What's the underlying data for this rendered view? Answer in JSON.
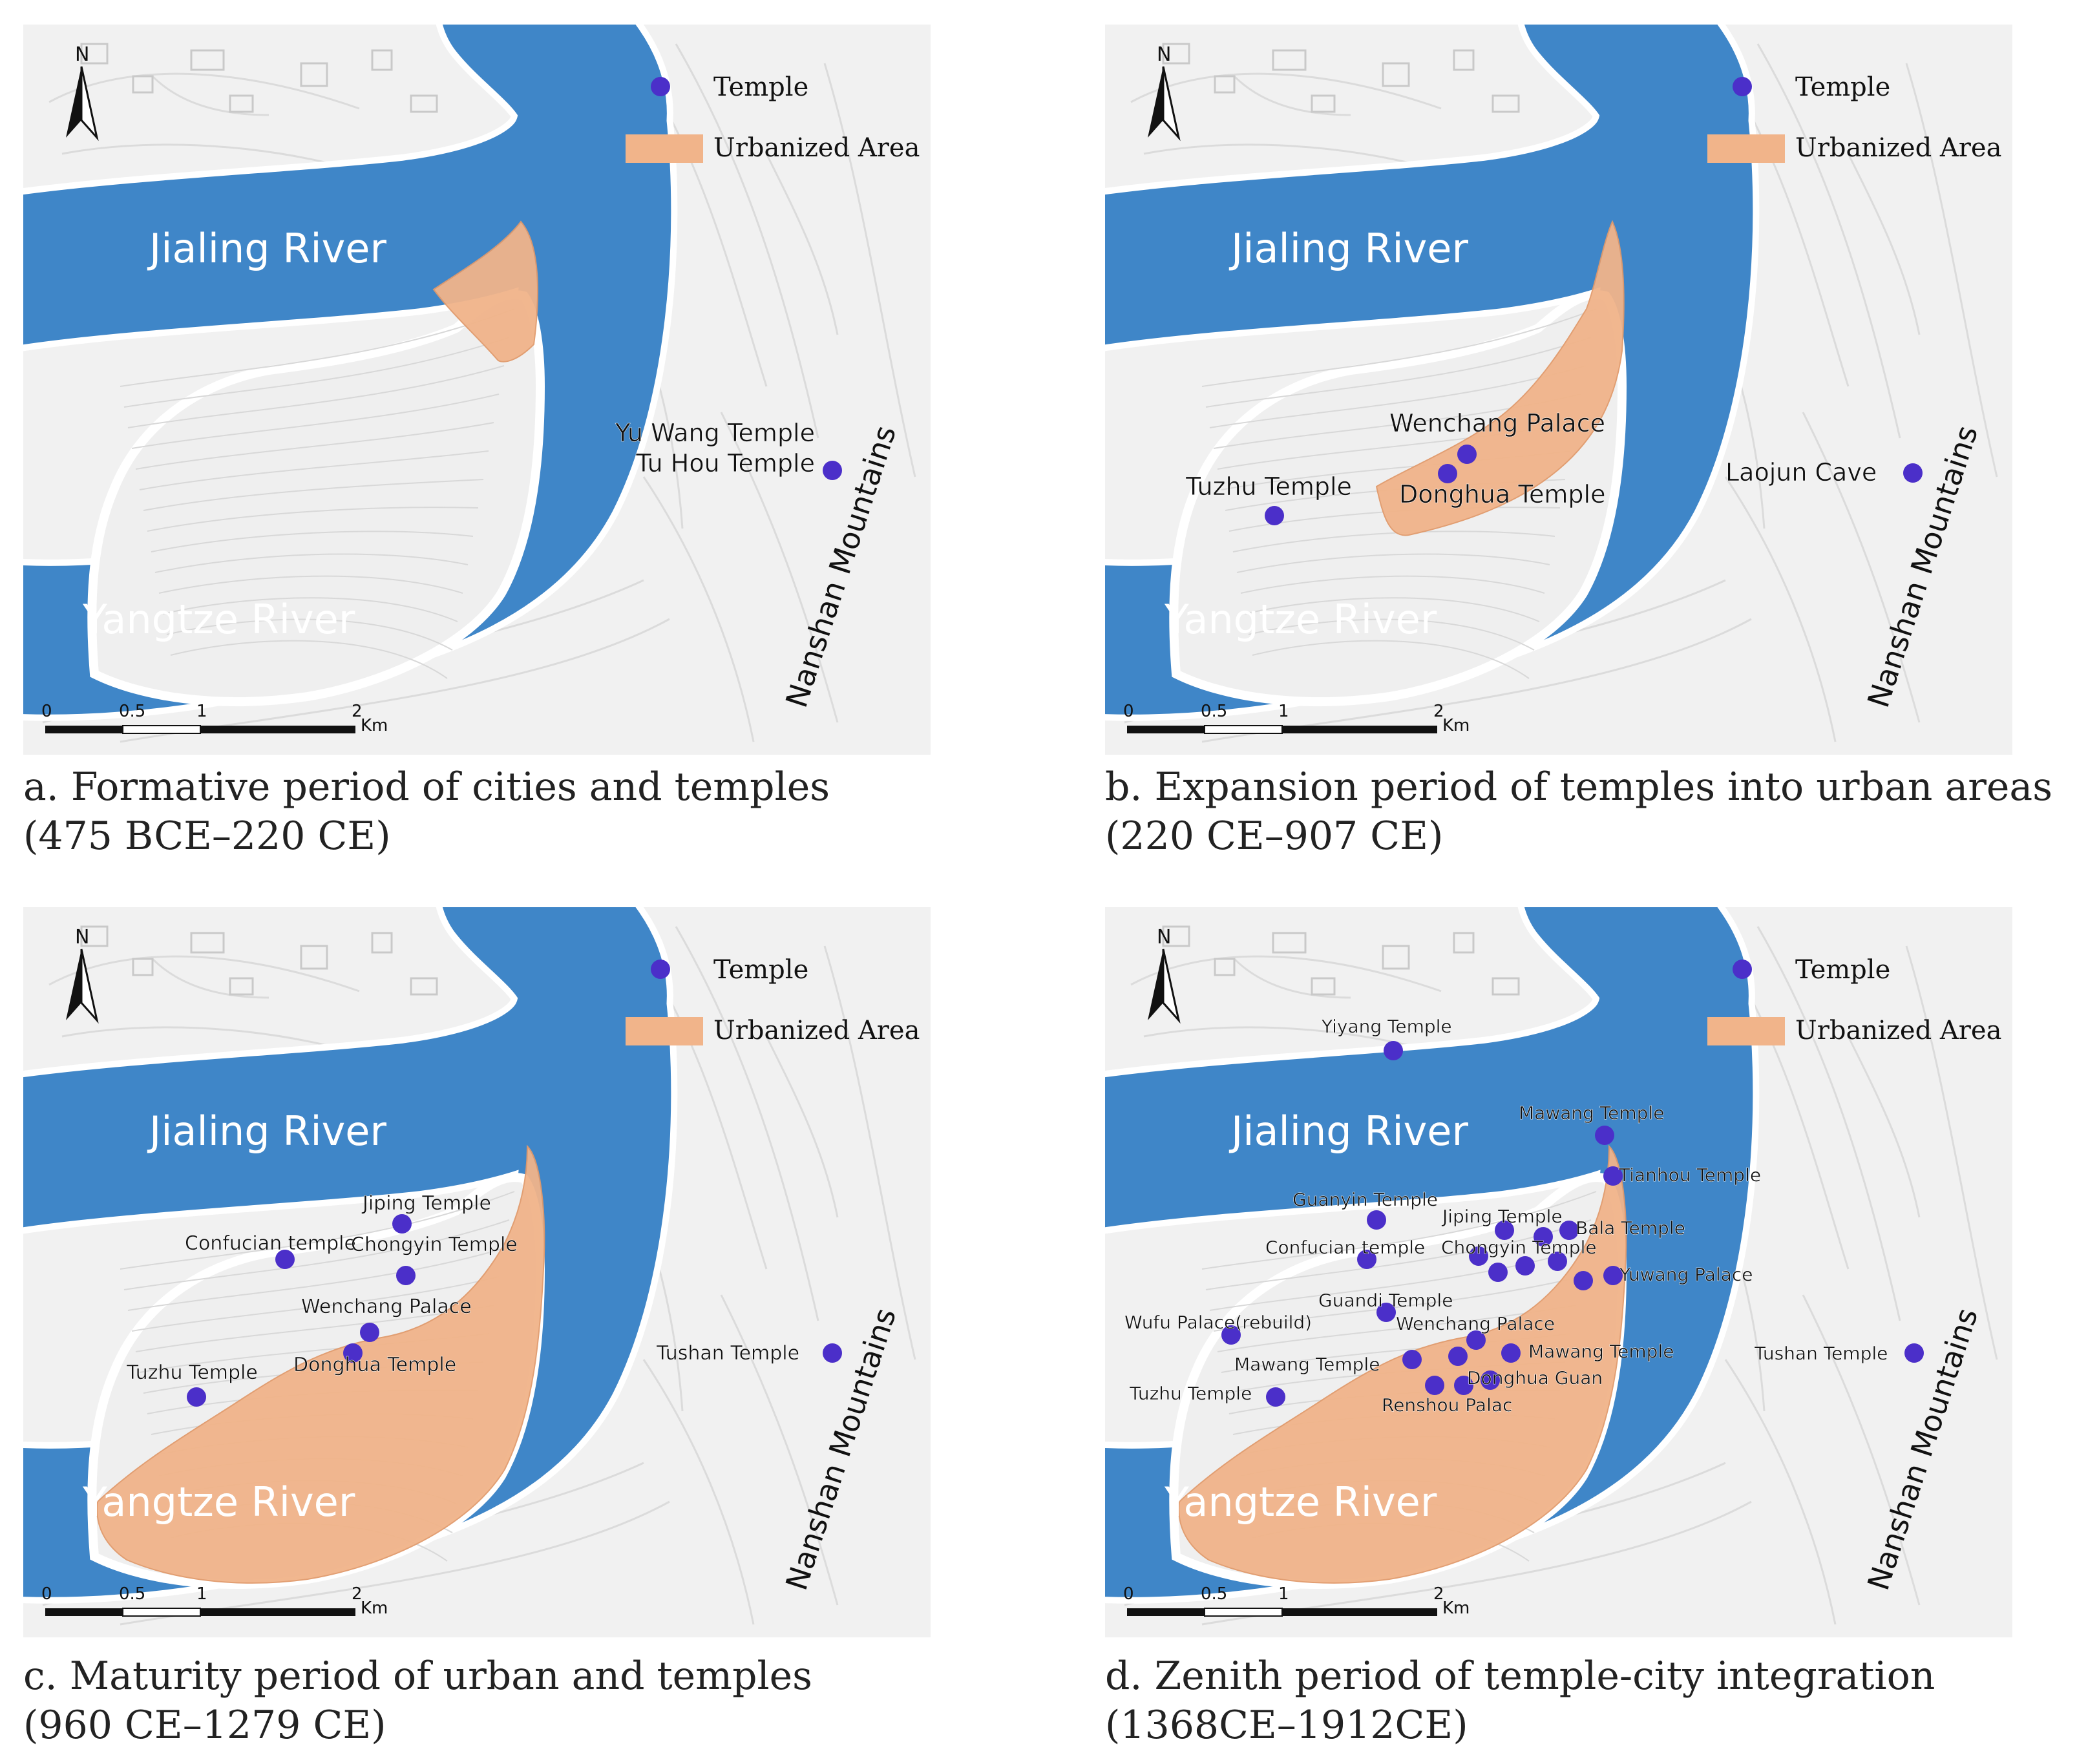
{
  "colors": {
    "river": "#3f86c8",
    "urban": "#f1b48a",
    "temple": "#4b2fc9",
    "terrain": "#f1f1f1",
    "terrain_line": "#d9d9d9"
  },
  "legend": {
    "temple": "Temple",
    "urban": "Urbanized Area"
  },
  "north_label": "N",
  "scalebar": {
    "labels": [
      "0",
      "0.5",
      "1",
      "2"
    ],
    "unit": "Km"
  },
  "rivers": {
    "jialing": "Jialing River",
    "yangtze": "Yangtze River"
  },
  "mountains": "Nanshan Mountains",
  "icons": [
    "north-arrow-icon",
    "temple-dot-icon"
  ],
  "panels": [
    {
      "id": "a",
      "caption_line1": "a. Formative period of cities and temples",
      "caption_line2": "(475 BCE–220 CE)",
      "urban_extent": "tip",
      "temples": [
        {
          "label": "Yu Wang Temple"
        },
        {
          "label": "Tu Hou Temple"
        }
      ]
    },
    {
      "id": "b",
      "caption_line1": "b. Expansion period of temples into urban areas",
      "caption_line2": "(220 CE–907 CE)",
      "urban_extent": "band",
      "temples": [
        {
          "label": "Wenchang Palace"
        },
        {
          "label": "Donghua Temple"
        },
        {
          "label": "Tuzhu Temple"
        },
        {
          "label": "Laojun Cave"
        }
      ]
    },
    {
      "id": "c",
      "caption_line1": "c. Maturity period of urban and temples",
      "caption_line2": "(960 CE–1279 CE)",
      "urban_extent": "full",
      "temples": [
        {
          "label": "Jiping Temple"
        },
        {
          "label": "Confucian temple"
        },
        {
          "label": "Chongyin Temple"
        },
        {
          "label": "Wenchang Palace"
        },
        {
          "label": "Donghua Temple"
        },
        {
          "label": "Tuzhu Temple"
        },
        {
          "label": "Tushan Temple"
        }
      ]
    },
    {
      "id": "d",
      "caption_line1": "d. Zenith period of temple-city integration",
      "caption_line2": "(1368CE–1912CE)",
      "urban_extent": "full",
      "temples": [
        {
          "label": "Yiyang Temple"
        },
        {
          "label": "Mawang Temple"
        },
        {
          "label": "Tianhou Temple"
        },
        {
          "label": "Guanyin Temple"
        },
        {
          "label": "Jiping Temple"
        },
        {
          "label": "Bala Temple"
        },
        {
          "label": "Confucian temple"
        },
        {
          "label": "Chongyin Temple"
        },
        {
          "label": "Yuwang Palace"
        },
        {
          "label": "Guandi Temple"
        },
        {
          "label": "Wufu Palace(rebuild)"
        },
        {
          "label": "Wenchang Palace"
        },
        {
          "label": "Mawang Temple"
        },
        {
          "label": "Mawang Temple"
        },
        {
          "label": "Donghua Guan"
        },
        {
          "label": "Tuzhu Temple"
        },
        {
          "label": "Renshou Palac"
        },
        {
          "label": "Tushan Temple"
        }
      ]
    }
  ]
}
